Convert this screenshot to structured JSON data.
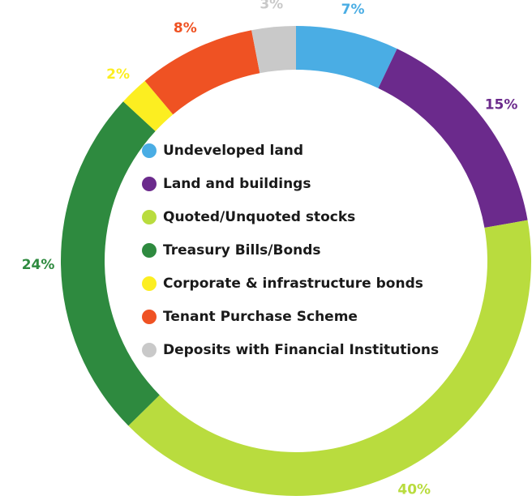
{
  "chart_data": {
    "type": "pie",
    "donut": true,
    "categories": [
      "Undeveloped land",
      "Land and buildings",
      "Quoted/Unquoted stocks",
      "Treasury Bills/Bonds",
      "Corporate & infrastructure bonds",
      "Tenant Purchase Scheme",
      "Deposits with Financial Institutions"
    ],
    "values": [
      7,
      15,
      40,
      24,
      2,
      8,
      3
    ],
    "value_labels": [
      "7%",
      "15%",
      "40%",
      "24%",
      "2%",
      "8%",
      "3%"
    ],
    "colors": [
      "#4aade4",
      "#6b2a8c",
      "#b9dc3e",
      "#2e8a3f",
      "#fcee21",
      "#ef5223",
      "#c9c9c9"
    ]
  }
}
